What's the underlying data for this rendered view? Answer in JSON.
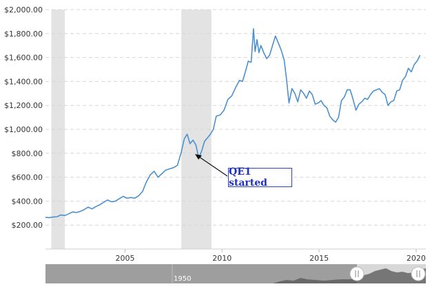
{
  "chart_data": {
    "type": "line",
    "title": "",
    "xlabel": "",
    "ylabel": "",
    "xlim": [
      2000.9,
      2020.5
    ],
    "ylim": [
      0,
      2000
    ],
    "yticks": [
      200,
      400,
      600,
      800,
      1000,
      1200,
      1400,
      1600,
      1800,
      2000
    ],
    "ytick_labels": [
      "$200.00",
      "$400.00",
      "$600.00",
      "$800.00",
      "$1,000.00",
      "$1,200.00",
      "$1,400.00",
      "$1,600.00",
      "$1,800.00",
      "$2,000.00"
    ],
    "xticks": [
      2005,
      2010,
      2015,
      2020
    ],
    "xtick_labels": [
      "2005",
      "2010",
      "2015",
      "2020"
    ],
    "grid": "horizontal dashed",
    "line_color": "#4a90d0",
    "recession_shading": [
      {
        "start": 2001.2,
        "end": 2001.9
      },
      {
        "start": 2007.9,
        "end": 2009.45
      }
    ],
    "annotations": [
      {
        "text": "QE1 started",
        "x": 2008.9,
        "y": 780
      }
    ],
    "series": [
      {
        "x": [
          2000.9,
          2001.1,
          2001.3,
          2001.5,
          2001.7,
          2001.9,
          2002.1,
          2002.3,
          2002.5,
          2002.7,
          2002.9,
          2003.1,
          2003.3,
          2003.5,
          2003.7,
          2003.9,
          2004.1,
          2004.3,
          2004.5,
          2004.7,
          2004.9,
          2005.1,
          2005.3,
          2005.5,
          2005.7,
          2005.9,
          2006.1,
          2006.3,
          2006.5,
          2006.7,
          2006.9,
          2007.1,
          2007.3,
          2007.5,
          2007.7,
          2007.9,
          2008.05,
          2008.2,
          2008.35,
          2008.5,
          2008.65,
          2008.8,
          2008.95,
          2009.1,
          2009.25,
          2009.4,
          2009.55,
          2009.7,
          2009.9,
          2010.1,
          2010.3,
          2010.5,
          2010.7,
          2010.9,
          2011.05,
          2011.2,
          2011.35,
          2011.5,
          2011.62,
          2011.7,
          2011.8,
          2011.9,
          2012.0,
          2012.15,
          2012.3,
          2012.45,
          2012.6,
          2012.75,
          2012.9,
          2013.05,
          2013.2,
          2013.32,
          2013.45,
          2013.6,
          2013.75,
          2013.9,
          2014.05,
          2014.2,
          2014.35,
          2014.5,
          2014.65,
          2014.8,
          2014.95,
          2015.1,
          2015.25,
          2015.4,
          2015.55,
          2015.7,
          2015.85,
          2016.0,
          2016.15,
          2016.3,
          2016.45,
          2016.6,
          2016.75,
          2016.9,
          2017.05,
          2017.2,
          2017.35,
          2017.5,
          2017.65,
          2017.8,
          2017.95,
          2018.1,
          2018.25,
          2018.4,
          2018.55,
          2018.7,
          2018.85,
          2019.0,
          2019.15,
          2019.3,
          2019.45,
          2019.6,
          2019.75,
          2019.9,
          2020.05,
          2020.2
        ],
        "y": [
          265,
          262,
          268,
          270,
          285,
          280,
          295,
          310,
          305,
          315,
          330,
          350,
          335,
          355,
          370,
          390,
          410,
          395,
          400,
          420,
          440,
          425,
          430,
          425,
          445,
          480,
          560,
          620,
          650,
          600,
          630,
          660,
          670,
          680,
          700,
          810,
          920,
          960,
          880,
          910,
          870,
          760,
          820,
          900,
          930,
          960,
          1000,
          1110,
          1120,
          1160,
          1250,
          1280,
          1350,
          1410,
          1400,
          1480,
          1570,
          1560,
          1840,
          1650,
          1750,
          1640,
          1700,
          1640,
          1590,
          1620,
          1700,
          1780,
          1720,
          1660,
          1580,
          1420,
          1220,
          1340,
          1300,
          1230,
          1330,
          1300,
          1260,
          1320,
          1290,
          1210,
          1220,
          1240,
          1200,
          1180,
          1110,
          1080,
          1060,
          1100,
          1240,
          1270,
          1330,
          1330,
          1250,
          1160,
          1210,
          1230,
          1260,
          1250,
          1290,
          1320,
          1330,
          1340,
          1310,
          1290,
          1200,
          1230,
          1240,
          1320,
          1330,
          1410,
          1440,
          1510,
          1480,
          1540,
          1570,
          1620
        ]
      }
    ]
  },
  "navigator": {
    "label": "1950",
    "left_handle_icon": "pause-bars-icon",
    "right_handle_icon": "pause-bars-icon"
  }
}
